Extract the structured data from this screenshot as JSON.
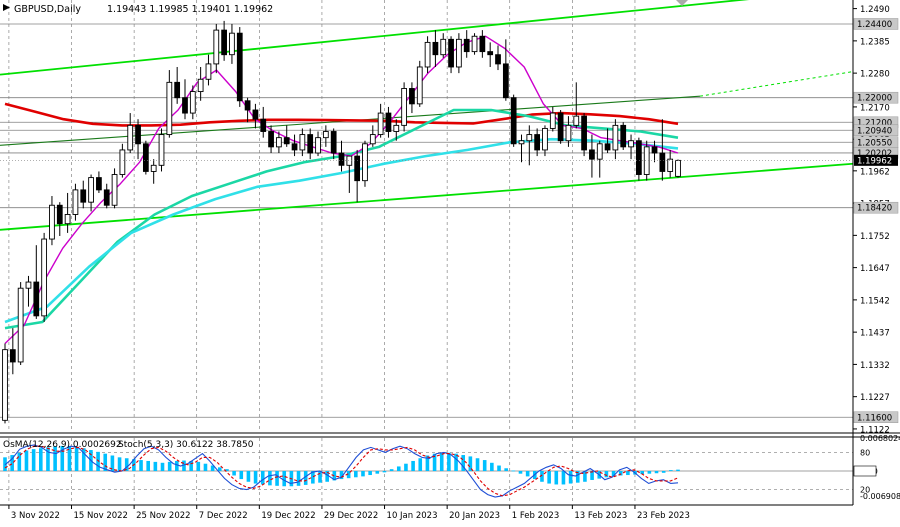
{
  "header": {
    "symbol": "GBPUSD,Daily",
    "ohlc": "1.19443 1.19985 1.19401 1.19962"
  },
  "colors": {
    "channel": "#00e000",
    "ma_slow": "#e00000",
    "ma_mid": "#00dddd",
    "ma_fast": "#cc00cc",
    "candle": "#000000",
    "histogram": "#00c0ff",
    "stoch_main": "#1f4fd6",
    "stoch_signal": "#e00000",
    "grid": "#000000",
    "price_tag_bg": "#c8c8c8",
    "current_tag_bg": "#000000"
  },
  "chart_data": [
    {
      "type": "candlestick",
      "symbol": "GBPUSD",
      "timeframe": "Daily",
      "ylim": [
        1.1112,
        1.2518
      ],
      "price_axis_ticks": [
        "1.2490",
        "1.2385",
        "1.2280",
        "1.2170",
        "1.2065",
        "1.1962",
        "1.1857",
        "1.1752",
        "1.1647",
        "1.1542",
        "1.1437",
        "1.1332",
        "1.1227",
        "1.1122"
      ],
      "price_level_tags": [
        "1.24400",
        "1.22000",
        "1.21200",
        "1.20940",
        "1.20550",
        "1.20202",
        "1.18420",
        "1.11600"
      ],
      "current_price_tag": "1.19962",
      "x_tick_labels": [
        "3 Nov 2022",
        "15 Nov 2022",
        "25 Nov 2022",
        "7 Dec 2022",
        "19 Dec 2022",
        "29 Dec 2022",
        "10 Jan 2023",
        "20 Jan 2023",
        "1 Feb 2023",
        "13 Feb 2023",
        "23 Feb 2023"
      ],
      "candles": [
        [
          1.115,
          1.14,
          1.114,
          1.138
        ],
        [
          1.138,
          1.145,
          1.13,
          1.134
        ],
        [
          1.134,
          1.16,
          1.133,
          1.158
        ],
        [
          1.158,
          1.162,
          1.152,
          1.16
        ],
        [
          1.16,
          1.172,
          1.148,
          1.149
        ],
        [
          1.149,
          1.176,
          1.147,
          1.174
        ],
        [
          1.174,
          1.188,
          1.172,
          1.185
        ],
        [
          1.185,
          1.186,
          1.175,
          1.179
        ],
        [
          1.179,
          1.189,
          1.176,
          1.182
        ],
        [
          1.182,
          1.192,
          1.18,
          1.19
        ],
        [
          1.19,
          1.193,
          1.184,
          1.186
        ],
        [
          1.186,
          1.195,
          1.183,
          1.194
        ],
        [
          1.194,
          1.196,
          1.189,
          1.19
        ],
        [
          1.19,
          1.192,
          1.184,
          1.185
        ],
        [
          1.185,
          1.197,
          1.184,
          1.195
        ],
        [
          1.195,
          1.205,
          1.194,
          1.203
        ],
        [
          1.203,
          1.215,
          1.202,
          1.211
        ],
        [
          1.211,
          1.213,
          1.2,
          1.205
        ],
        [
          1.205,
          1.206,
          1.195,
          1.196
        ],
        [
          1.196,
          1.2,
          1.192,
          1.198
        ],
        [
          1.198,
          1.21,
          1.196,
          1.208
        ],
        [
          1.208,
          1.229,
          1.207,
          1.225
        ],
        [
          1.225,
          1.23,
          1.218,
          1.22
        ],
        [
          1.22,
          1.226,
          1.213,
          1.215
        ],
        [
          1.215,
          1.224,
          1.213,
          1.222
        ],
        [
          1.222,
          1.23,
          1.219,
          1.226
        ],
        [
          1.226,
          1.234,
          1.224,
          1.231
        ],
        [
          1.231,
          1.244,
          1.228,
          1.242
        ],
        [
          1.242,
          1.245,
          1.232,
          1.234
        ],
        [
          1.234,
          1.244,
          1.231,
          1.241
        ],
        [
          1.241,
          1.243,
          1.217,
          1.219
        ],
        [
          1.219,
          1.22,
          1.212,
          1.216
        ],
        [
          1.216,
          1.218,
          1.21,
          1.213
        ],
        [
          1.213,
          1.217,
          1.207,
          1.209
        ],
        [
          1.209,
          1.211,
          1.202,
          1.204
        ],
        [
          1.204,
          1.209,
          1.202,
          1.207
        ],
        [
          1.207,
          1.211,
          1.204,
          1.205
        ],
        [
          1.205,
          1.208,
          1.201,
          1.203
        ],
        [
          1.203,
          1.21,
          1.201,
          1.208
        ],
        [
          1.208,
          1.21,
          1.2,
          1.202
        ],
        [
          1.202,
          1.209,
          1.201,
          1.207
        ],
        [
          1.207,
          1.211,
          1.204,
          1.209
        ],
        [
          1.209,
          1.21,
          1.2,
          1.202
        ],
        [
          1.202,
          1.206,
          1.196,
          1.198
        ],
        [
          1.198,
          1.2,
          1.189,
          1.201
        ],
        [
          1.201,
          1.203,
          1.186,
          1.193
        ],
        [
          1.193,
          1.206,
          1.191,
          1.205
        ],
        [
          1.205,
          1.211,
          1.204,
          1.208
        ],
        [
          1.208,
          1.218,
          1.207,
          1.215
        ],
        [
          1.215,
          1.217,
          1.207,
          1.209
        ],
        [
          1.209,
          1.213,
          1.206,
          1.211
        ],
        [
          1.211,
          1.225,
          1.209,
          1.223
        ],
        [
          1.223,
          1.225,
          1.215,
          1.218
        ],
        [
          1.218,
          1.232,
          1.217,
          1.23
        ],
        [
          1.23,
          1.24,
          1.228,
          1.238
        ],
        [
          1.238,
          1.242,
          1.23,
          1.234
        ],
        [
          1.234,
          1.241,
          1.233,
          1.239
        ],
        [
          1.239,
          1.24,
          1.228,
          1.23
        ],
        [
          1.23,
          1.241,
          1.228,
          1.239
        ],
        [
          1.239,
          1.242,
          1.233,
          1.235
        ],
        [
          1.235,
          1.241,
          1.234,
          1.24
        ],
        [
          1.24,
          1.242,
          1.233,
          1.235
        ],
        [
          1.235,
          1.238,
          1.23,
          1.234
        ],
        [
          1.234,
          1.237,
          1.229,
          1.231
        ],
        [
          1.231,
          1.239,
          1.219,
          1.22
        ],
        [
          1.22,
          1.221,
          1.204,
          1.205
        ],
        [
          1.205,
          1.208,
          1.199,
          1.206
        ],
        [
          1.206,
          1.211,
          1.198,
          1.208
        ],
        [
          1.208,
          1.21,
          1.201,
          1.203
        ],
        [
          1.203,
          1.211,
          1.201,
          1.21
        ],
        [
          1.21,
          1.217,
          1.209,
          1.215
        ],
        [
          1.215,
          1.216,
          1.205,
          1.206
        ],
        [
          1.206,
          1.214,
          1.204,
          1.211
        ],
        [
          1.211,
          1.225,
          1.21,
          1.214
        ],
        [
          1.214,
          1.215,
          1.201,
          1.203
        ],
        [
          1.203,
          1.208,
          1.194,
          1.2
        ],
        [
          1.2,
          1.206,
          1.194,
          1.205
        ],
        [
          1.205,
          1.21,
          1.202,
          1.203
        ],
        [
          1.203,
          1.213,
          1.2,
          1.211
        ],
        [
          1.211,
          1.212,
          1.203,
          1.204
        ],
        [
          1.204,
          1.208,
          1.2,
          1.206
        ],
        [
          1.206,
          1.207,
          1.193,
          1.195
        ],
        [
          1.195,
          1.206,
          1.193,
          1.204
        ],
        [
          1.204,
          1.206,
          1.199,
          1.202
        ],
        [
          1.202,
          1.213,
          1.193,
          1.196
        ],
        [
          1.196,
          1.203,
          1.194,
          1.2
        ],
        [
          1.1944,
          1.1999,
          1.194,
          1.1996
        ]
      ],
      "moving_averages": [
        {
          "key": "ma_slow",
          "values": [
            1.218,
            1.2155,
            1.213,
            1.2115,
            1.211,
            1.211,
            1.2112,
            1.212,
            1.2125,
            1.2128,
            1.2128,
            1.2127,
            1.2126,
            1.2125,
            1.212,
            1.2118,
            1.2116,
            1.213,
            1.2145,
            1.215,
            1.2146,
            1.214,
            1.213,
            1.2115
          ]
        },
        {
          "key": "ma_mid",
          "values": [
            1.145,
            1.147,
            1.16,
            1.173,
            1.182,
            1.188,
            1.192,
            1.196,
            1.199,
            1.201,
            1.204,
            1.21,
            1.216,
            1.216,
            1.214,
            1.211,
            1.21,
            1.209,
            1.207
          ]
        },
        {
          "key": "ma_fast",
          "values": [
            1.147,
            1.152,
            1.165,
            1.176,
            1.182,
            1.187,
            1.191,
            1.193,
            1.1955,
            1.1985,
            1.201,
            1.203,
            1.2055,
            1.2065,
            1.206,
            1.205,
            1.2035
          ]
        },
        {
          "key": "ma_short",
          "values": [
            1.14,
            1.146,
            1.16,
            1.171,
            1.179,
            1.186,
            1.192,
            1.199,
            1.21,
            1.216,
            1.225,
            1.229,
            1.222,
            1.213,
            1.209,
            1.206,
            1.204,
            1.202,
            1.201,
            1.205,
            1.212,
            1.22,
            1.228,
            1.234,
            1.238,
            1.24,
            1.236,
            1.23,
            1.218,
            1.211,
            1.21,
            1.207,
            1.206,
            1.205,
            1.204,
            1.202
          ]
        }
      ]
    },
    {
      "type": "oscillator",
      "indicators": [
        "OsMA(12,26,9) 0.0002692",
        "Stoch(5,3,3) 30.6122 38.7850"
      ],
      "axis_labels": [
        "0.0068024",
        "80",
        "0.00",
        "20",
        "-0.006908"
      ],
      "osma_histogram": [
        0.003,
        0.0035,
        0.004,
        0.0045,
        0.0048,
        0.005,
        0.0052,
        0.0054,
        0.0055,
        0.0055,
        0.0053,
        0.005,
        0.0046,
        0.0042,
        0.0038,
        0.0034,
        0.003,
        0.0028,
        0.0026,
        0.0024,
        0.0022,
        0.002,
        0.0018,
        0.002,
        0.0022,
        0.0023,
        0.0022,
        0.002,
        0.0016,
        0.0012,
        0.0008,
        0.0004,
        -0.001,
        -0.0018,
        -0.0024,
        -0.0028,
        -0.003,
        -0.0032,
        -0.0033,
        -0.0034,
        -0.0034,
        -0.0033,
        -0.0031,
        -0.0028,
        -0.0026,
        -0.0024,
        -0.0021,
        -0.0018,
        -0.0016,
        -0.0014,
        -0.0012,
        -0.0009,
        -0.0006,
        -0.0003,
        0.0004,
        0.001,
        0.0016,
        0.0022,
        0.0028,
        0.0034,
        0.0038,
        0.004,
        0.004,
        0.0038,
        0.0035,
        0.0032,
        0.0028,
        0.0024,
        0.0018,
        0.0012,
        0.0006,
        0.0001,
        -0.0006,
        -0.0012,
        -0.0018,
        -0.0024,
        -0.0028,
        -0.003,
        -0.003,
        -0.0028,
        -0.0026,
        -0.0024,
        -0.002,
        -0.0017,
        -0.0014,
        -0.0012,
        -0.001,
        -0.0009,
        -0.0008,
        -0.0007,
        -0.0006,
        -0.0005,
        -0.0004,
        0.0002,
        0.0003
      ],
      "stoch_main": [
        60,
        70,
        85,
        90,
        92,
        88,
        80,
        78,
        85,
        90,
        88,
        76,
        64,
        56,
        52,
        48,
        50,
        60,
        74,
        86,
        90,
        84,
        72,
        62,
        58,
        62,
        70,
        78,
        66,
        52,
        38,
        28,
        22,
        20,
        24,
        34,
        42,
        44,
        36,
        30,
        32,
        40,
        48,
        50,
        44,
        36,
        40,
        56,
        72,
        84,
        88,
        84,
        80,
        86,
        90,
        86,
        78,
        72,
        70,
        78,
        80,
        76,
        66,
        52,
        36,
        20,
        12,
        8,
        10,
        18,
        24,
        30,
        40,
        50,
        56,
        60,
        54,
        44,
        42,
        48,
        54,
        46,
        36,
        40,
        52,
        56,
        48,
        38,
        30,
        34,
        36,
        30,
        31
      ],
      "stoch_signal": [
        55,
        62,
        75,
        85,
        90,
        90,
        86,
        82,
        82,
        86,
        88,
        84,
        74,
        64,
        56,
        52,
        50,
        54,
        64,
        76,
        86,
        88,
        82,
        72,
        64,
        60,
        64,
        72,
        72,
        64,
        52,
        40,
        30,
        24,
        22,
        26,
        34,
        40,
        42,
        38,
        34,
        34,
        40,
        46,
        48,
        42,
        40,
        46,
        58,
        72,
        84,
        86,
        84,
        84,
        86,
        88,
        84,
        76,
        72,
        74,
        78,
        78,
        74,
        64,
        50,
        34,
        22,
        14,
        10,
        12,
        18,
        24,
        32,
        40,
        48,
        56,
        58,
        54,
        48,
        46,
        48,
        50,
        44,
        40,
        44,
        50,
        52,
        46,
        38,
        34,
        34,
        34,
        38.8
      ]
    }
  ]
}
